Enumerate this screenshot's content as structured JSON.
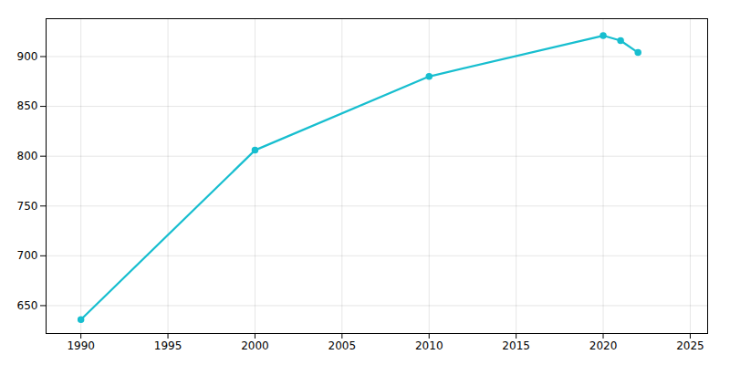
{
  "chart_data": {
    "type": "line",
    "x": [
      1990,
      2000,
      2010,
      2020,
      2021,
      2022
    ],
    "values": [
      636,
      806,
      880,
      921,
      916,
      904
    ],
    "color": "#17becf",
    "marker": "circle",
    "xlim": [
      1988,
      2026
    ],
    "ylim": [
      622,
      938
    ],
    "xticks": [
      1990,
      1995,
      2000,
      2005,
      2010,
      2015,
      2020,
      2025
    ],
    "yticks": [
      650,
      700,
      750,
      800,
      850,
      900
    ],
    "grid": true
  }
}
